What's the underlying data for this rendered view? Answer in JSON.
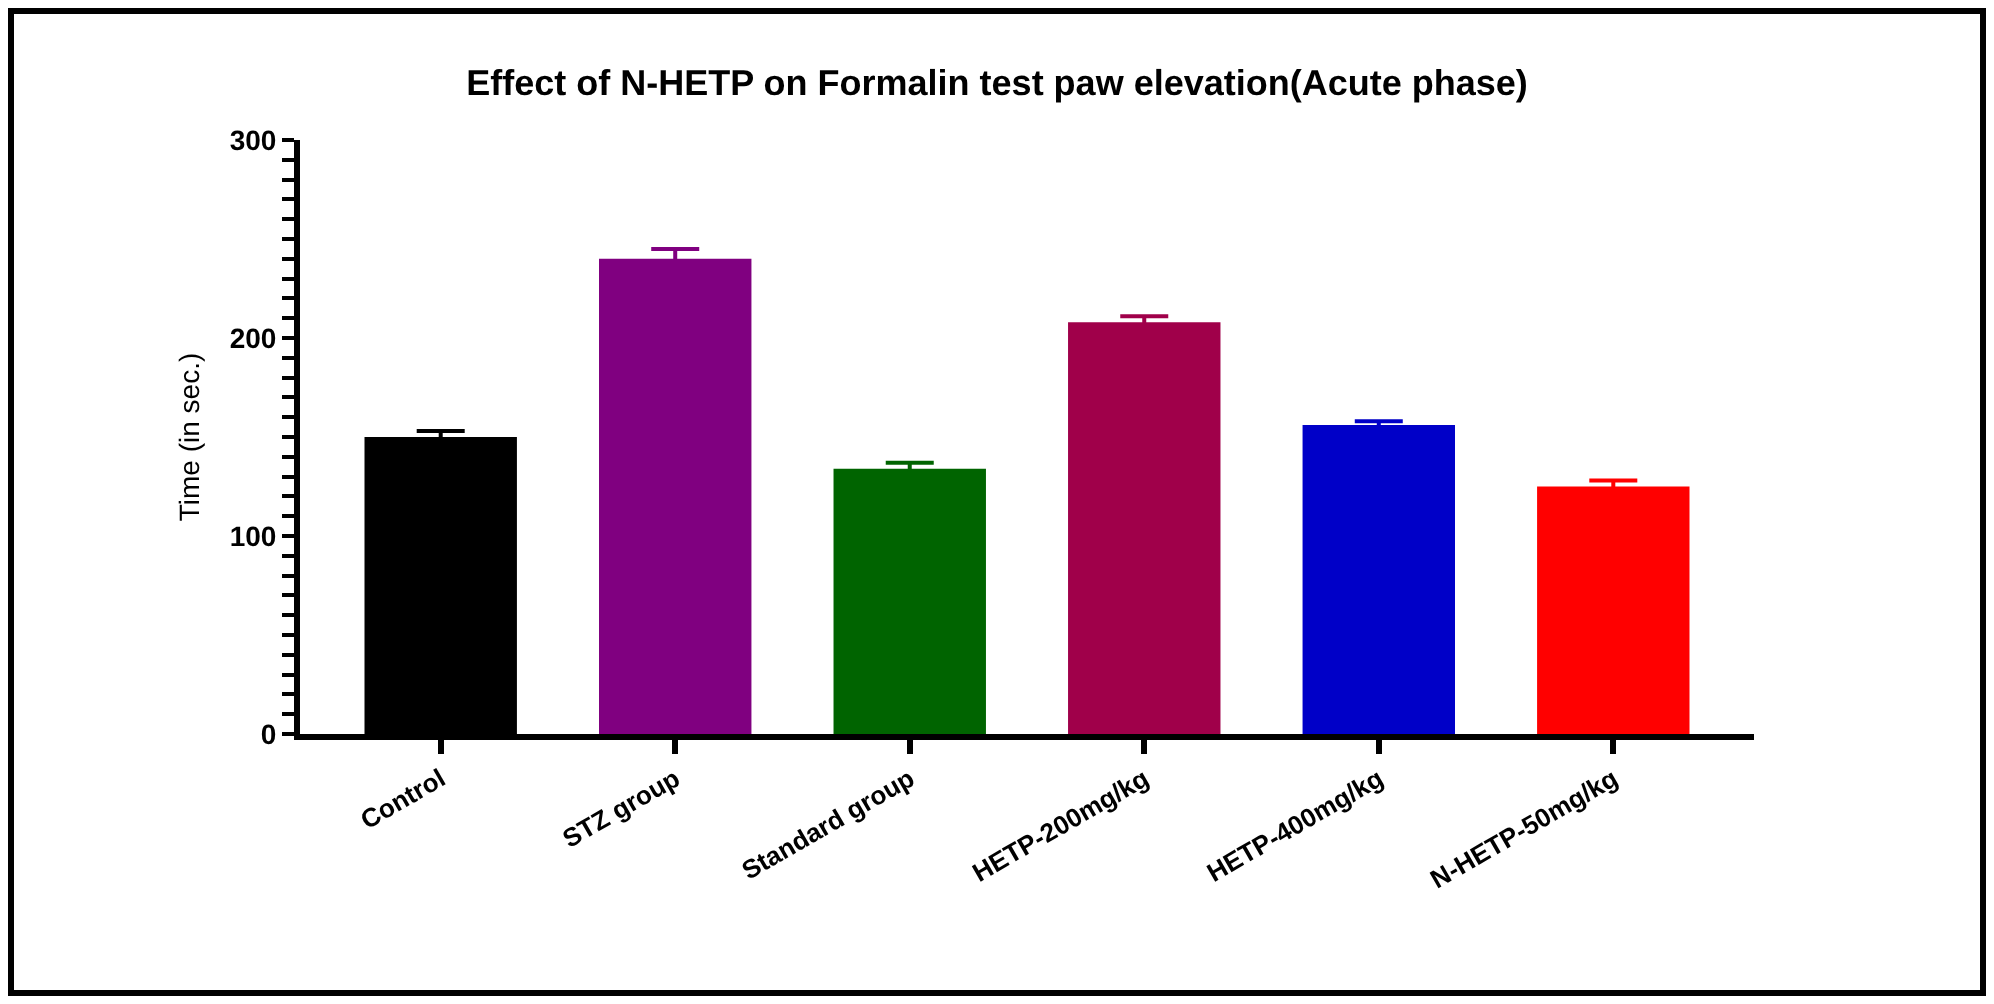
{
  "chart_data": {
    "type": "bar",
    "title": "Effect of N-HETP on Formalin test paw elevation(Acute phase)",
    "ylabel": "Time (in sec.)",
    "categories": [
      "Control",
      "STZ group",
      "Standard group",
      "HETP-200mg/kg",
      "HETP-400mg/kg",
      "N-HETP-50mg/kg"
    ],
    "values": [
      150,
      240,
      134,
      208,
      156,
      125
    ],
    "errors": [
      3,
      5,
      3,
      3,
      2,
      3
    ],
    "colors": [
      "#000000",
      "#800080",
      "#006400",
      "#a0004a",
      "#0000c8",
      "#ff0000"
    ],
    "ylim": [
      0,
      300
    ],
    "yticks": [
      0,
      {
        "value": 10,
        "label": null
      },
      {
        "value": 20,
        "label": null
      },
      {
        "value": 30,
        "label": null
      },
      {
        "value": 40,
        "label": null
      },
      {
        "value": 50,
        "label": null
      },
      {
        "value": 60,
        "label": null
      },
      {
        "value": 70,
        "label": null
      },
      {
        "value": 80,
        "label": null
      },
      {
        "value": 90,
        "label": null
      },
      100,
      {
        "value": 110,
        "label": null
      },
      {
        "value": 120,
        "label": null
      },
      {
        "value": 130,
        "label": null
      },
      {
        "value": 140,
        "label": null
      },
      {
        "value": 150,
        "label": null
      },
      {
        "value": 160,
        "label": null
      },
      {
        "value": 170,
        "label": null
      },
      {
        "value": 180,
        "label": null
      },
      {
        "value": 190,
        "label": null
      },
      200,
      {
        "value": 210,
        "label": null
      },
      {
        "value": 220,
        "label": null
      },
      {
        "value": 230,
        "label": null
      },
      {
        "value": 240,
        "label": null
      },
      {
        "value": 250,
        "label": null
      },
      {
        "value": 260,
        "label": null
      },
      {
        "value": 270,
        "label": null
      },
      {
        "value": 280,
        "label": null
      },
      {
        "value": 290,
        "label": null
      },
      300
    ],
    "grid": false
  }
}
